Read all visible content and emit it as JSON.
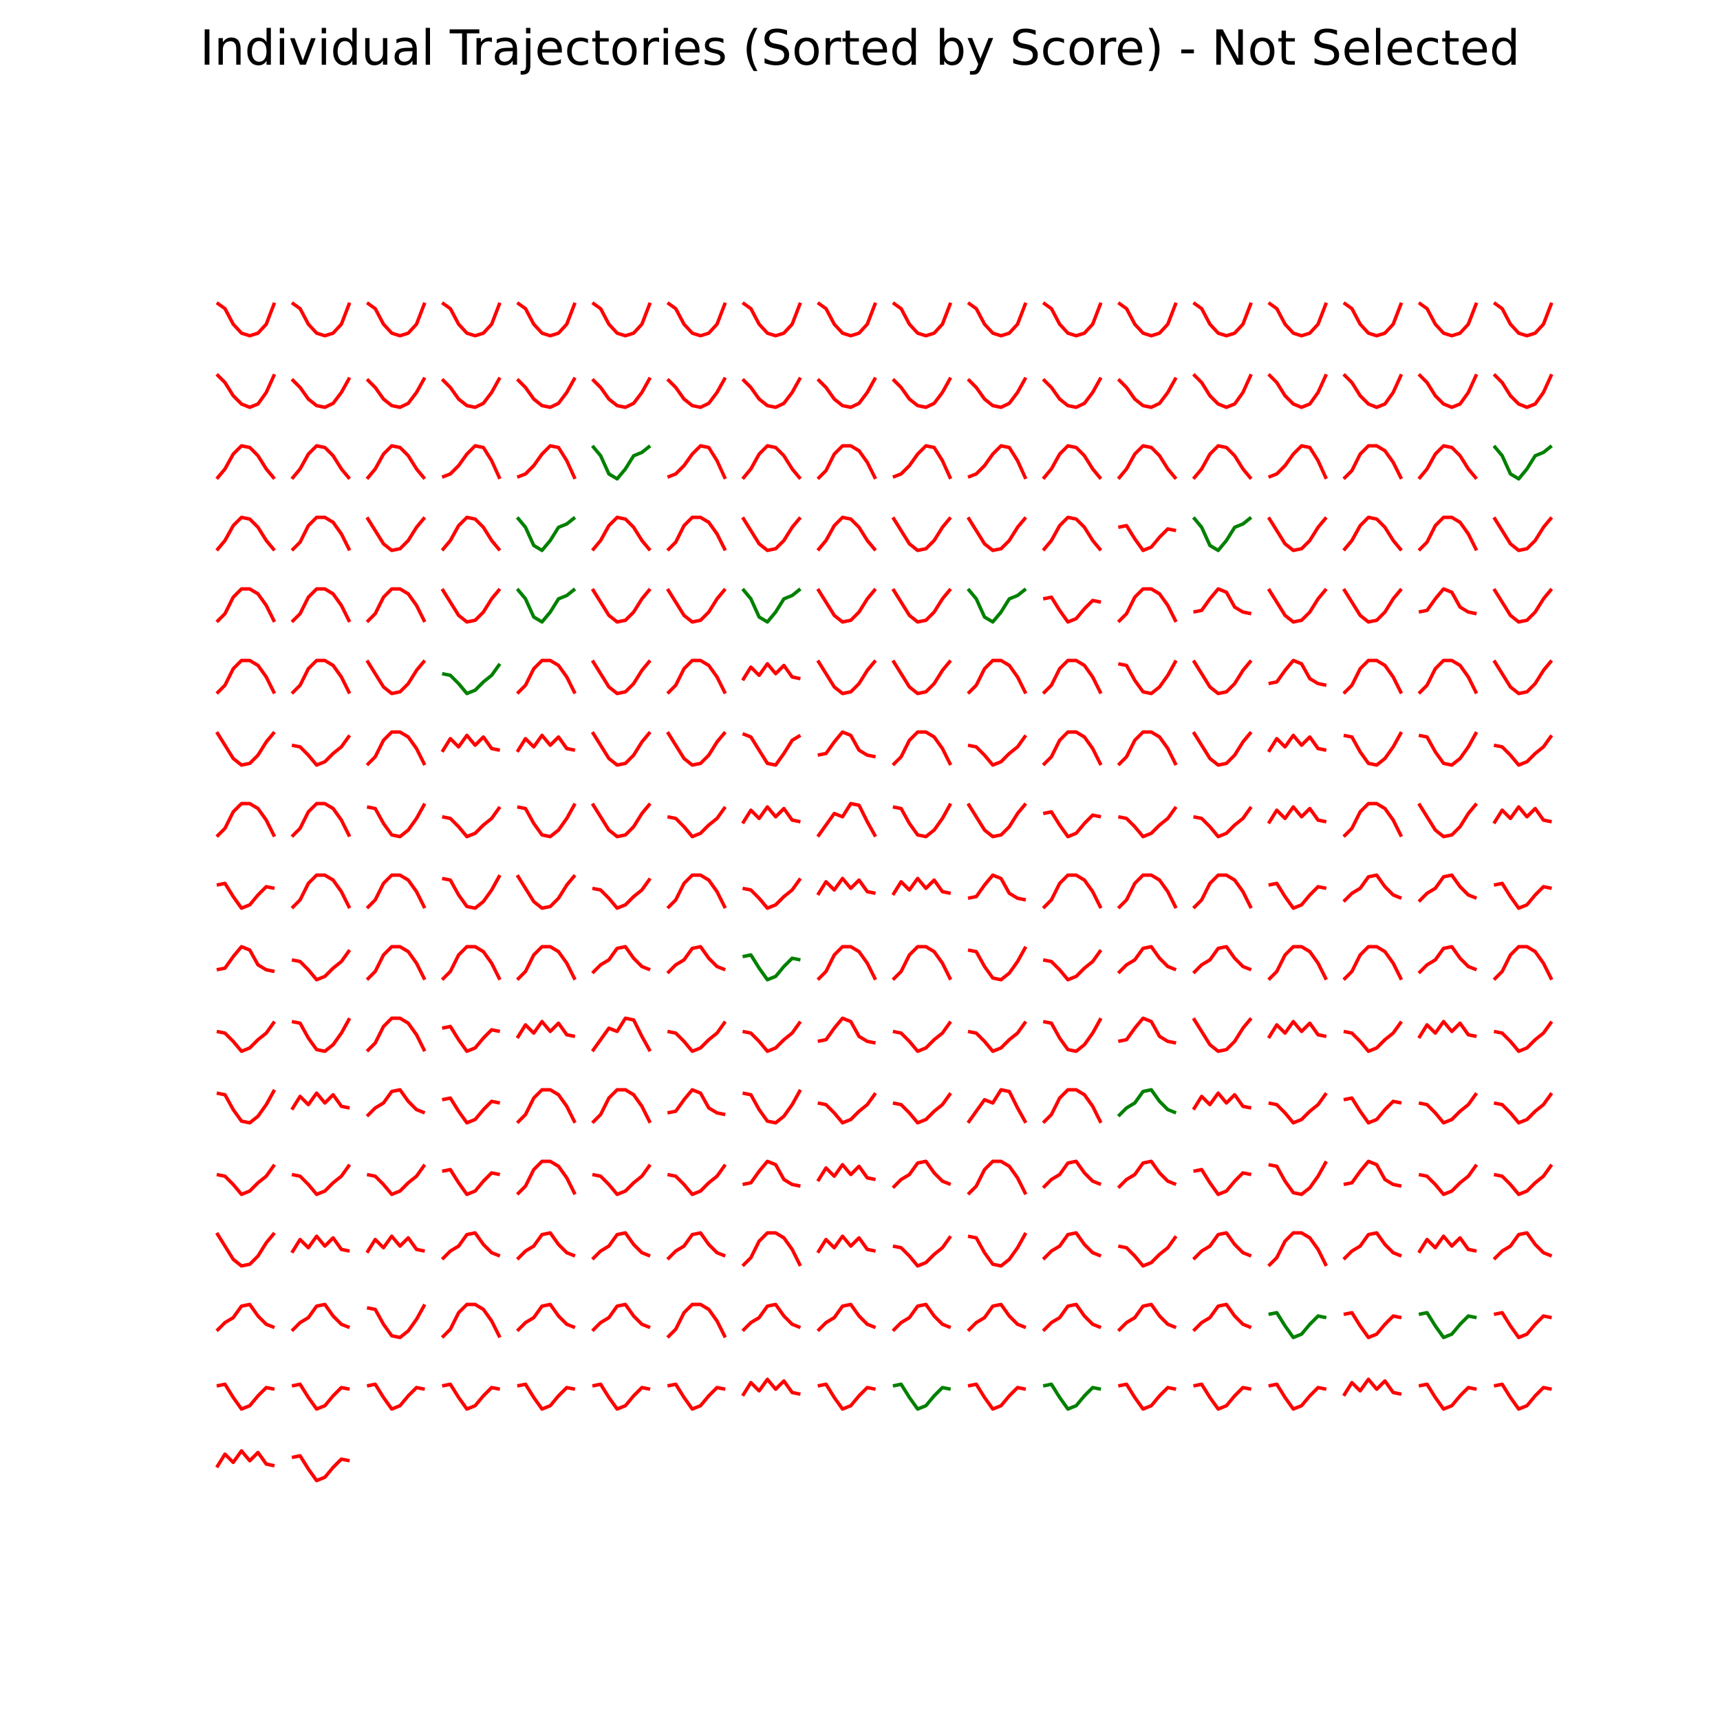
{
  "chart_data": {
    "type": "line",
    "title": "Individual Trajectories (Sorted by Score) - Not Selected",
    "xlabel": "",
    "ylabel": "",
    "grid": false,
    "axes_visible": false,
    "layout": "small multiples, 18 per row, sorted by score",
    "colors": {
      "selected": "#008000",
      "not_selected": "#ff0000"
    },
    "shape_legend_note": "Each trajectory is one of a set of recognizable shapes; values below are normalized 0–1 heights at 8 evenly spaced x steps (1 = top).",
    "shapes": {
      "U": [
        1.0,
        0.82,
        0.35,
        0.08,
        0.0,
        0.08,
        0.35,
        1.0
      ],
      "Ushal": [
        0.85,
        0.6,
        0.25,
        0.05,
        0.0,
        0.12,
        0.45,
        0.9
      ],
      "Vr": [
        1.0,
        0.75,
        0.35,
        0.1,
        0.0,
        0.1,
        0.45,
        1.0
      ],
      "A": [
        0.0,
        0.25,
        0.75,
        1.0,
        1.0,
        0.85,
        0.5,
        0.0
      ],
      "Alft": [
        0.0,
        0.3,
        0.75,
        1.0,
        0.95,
        0.7,
        0.3,
        0.0
      ],
      "Arit": [
        0.05,
        0.15,
        0.4,
        0.75,
        1.0,
        0.95,
        0.55,
        0.0
      ],
      "Awav": [
        0.0,
        0.35,
        0.7,
        0.6,
        1.0,
        0.95,
        0.45,
        0.0
      ],
      "W": [
        1.0,
        0.7,
        0.15,
        0.0,
        0.3,
        0.7,
        0.8,
        1.0
      ],
      "Ul": [
        1.0,
        0.6,
        0.2,
        0.0,
        0.05,
        0.3,
        0.7,
        1.0
      ],
      "S": [
        0.6,
        0.55,
        0.3,
        0.0,
        0.1,
        0.35,
        0.55,
        0.9
      ],
      "Sr": [
        0.95,
        0.85,
        0.45,
        0.05,
        0.0,
        0.35,
        0.75,
        0.9
      ],
      "flatA": [
        0.3,
        0.35,
        0.7,
        1.0,
        0.9,
        0.45,
        0.3,
        0.25
      ],
      "flatU": [
        0.9,
        0.85,
        0.4,
        0.05,
        0.0,
        0.2,
        0.55,
        1.0
      ],
      "lowA": [
        0.2,
        0.45,
        0.6,
        0.95,
        1.0,
        0.65,
        0.4,
        0.3
      ],
      "zig": [
        0.4,
        0.8,
        0.55,
        0.9,
        0.6,
        0.85,
        0.5,
        0.45
      ],
      "dip": [
        0.7,
        0.75,
        0.35,
        0.0,
        0.1,
        0.4,
        0.65,
        0.6
      ],
      "dipR": [
        0.6,
        0.7,
        0.45,
        0.15,
        0.0,
        0.25,
        0.55,
        1.0
      ]
    },
    "trajectories": [
      [
        "U",
        "r"
      ],
      [
        "U",
        "r"
      ],
      [
        "U",
        "r"
      ],
      [
        "U",
        "r"
      ],
      [
        "U",
        "r"
      ],
      [
        "U",
        "r"
      ],
      [
        "U",
        "r"
      ],
      [
        "U",
        "r"
      ],
      [
        "U",
        "r"
      ],
      [
        "U",
        "r"
      ],
      [
        "U",
        "r"
      ],
      [
        "U",
        "r"
      ],
      [
        "U",
        "r"
      ],
      [
        "U",
        "r"
      ],
      [
        "U",
        "r"
      ],
      [
        "U",
        "r"
      ],
      [
        "U",
        "r"
      ],
      [
        "U",
        "r"
      ],
      [
        "Vr",
        "r"
      ],
      [
        "Ushal",
        "r"
      ],
      [
        "Ushal",
        "r"
      ],
      [
        "Ushal",
        "r"
      ],
      [
        "Ushal",
        "r"
      ],
      [
        "Ushal",
        "r"
      ],
      [
        "Ushal",
        "r"
      ],
      [
        "Ushal",
        "r"
      ],
      [
        "Ushal",
        "r"
      ],
      [
        "Ushal",
        "r"
      ],
      [
        "Ushal",
        "r"
      ],
      [
        "Ushal",
        "r"
      ],
      [
        "Ushal",
        "r"
      ],
      [
        "Vr",
        "r"
      ],
      [
        "Vr",
        "r"
      ],
      [
        "Vr",
        "r"
      ],
      [
        "Vr",
        "r"
      ],
      [
        "Vr",
        "r"
      ],
      [
        "Alft",
        "r"
      ],
      [
        "Alft",
        "r"
      ],
      [
        "Alft",
        "r"
      ],
      [
        "Arit",
        "r"
      ],
      [
        "Arit",
        "r"
      ],
      [
        "W",
        "g"
      ],
      [
        "Arit",
        "r"
      ],
      [
        "Alft",
        "r"
      ],
      [
        "A",
        "r"
      ],
      [
        "Arit",
        "r"
      ],
      [
        "Arit",
        "r"
      ],
      [
        "Alft",
        "r"
      ],
      [
        "Alft",
        "r"
      ],
      [
        "Alft",
        "r"
      ],
      [
        "Arit",
        "r"
      ],
      [
        "A",
        "r"
      ],
      [
        "Alft",
        "r"
      ],
      [
        "W",
        "g"
      ],
      [
        "Alft",
        "r"
      ],
      [
        "A",
        "r"
      ],
      [
        "Ul",
        "r"
      ],
      [
        "Alft",
        "r"
      ],
      [
        "W",
        "g"
      ],
      [
        "Alft",
        "r"
      ],
      [
        "A",
        "r"
      ],
      [
        "Ul",
        "r"
      ],
      [
        "Alft",
        "r"
      ],
      [
        "Ul",
        "r"
      ],
      [
        "Ul",
        "r"
      ],
      [
        "Alft",
        "r"
      ],
      [
        "dip",
        "r"
      ],
      [
        "W",
        "g"
      ],
      [
        "Ul",
        "r"
      ],
      [
        "Alft",
        "r"
      ],
      [
        "A",
        "r"
      ],
      [
        "Ul",
        "r"
      ],
      [
        "A",
        "r"
      ],
      [
        "A",
        "r"
      ],
      [
        "A",
        "r"
      ],
      [
        "Ul",
        "r"
      ],
      [
        "W",
        "g"
      ],
      [
        "Ul",
        "r"
      ],
      [
        "Ul",
        "r"
      ],
      [
        "W",
        "g"
      ],
      [
        "Ul",
        "r"
      ],
      [
        "Ul",
        "r"
      ],
      [
        "W",
        "g"
      ],
      [
        "dip",
        "r"
      ],
      [
        "A",
        "r"
      ],
      [
        "flatA",
        "r"
      ],
      [
        "Ul",
        "r"
      ],
      [
        "Ul",
        "r"
      ],
      [
        "flatA",
        "r"
      ],
      [
        "Ul",
        "r"
      ],
      [
        "A",
        "r"
      ],
      [
        "A",
        "r"
      ],
      [
        "Ul",
        "r"
      ],
      [
        "S",
        "g"
      ],
      [
        "A",
        "r"
      ],
      [
        "Ul",
        "r"
      ],
      [
        "A",
        "r"
      ],
      [
        "zig",
        "r"
      ],
      [
        "Ul",
        "r"
      ],
      [
        "Ul",
        "r"
      ],
      [
        "A",
        "r"
      ],
      [
        "A",
        "r"
      ],
      [
        "flatU",
        "r"
      ],
      [
        "Ul",
        "r"
      ],
      [
        "flatA",
        "r"
      ],
      [
        "A",
        "r"
      ],
      [
        "A",
        "r"
      ],
      [
        "Ul",
        "r"
      ],
      [
        "Ul",
        "r"
      ],
      [
        "S",
        "r"
      ],
      [
        "A",
        "r"
      ],
      [
        "zig",
        "r"
      ],
      [
        "zig",
        "r"
      ],
      [
        "Ul",
        "r"
      ],
      [
        "Ul",
        "r"
      ],
      [
        "Sr",
        "r"
      ],
      [
        "flatA",
        "r"
      ],
      [
        "A",
        "r"
      ],
      [
        "S",
        "r"
      ],
      [
        "A",
        "r"
      ],
      [
        "A",
        "r"
      ],
      [
        "Ul",
        "r"
      ],
      [
        "zig",
        "r"
      ],
      [
        "flatU",
        "r"
      ],
      [
        "flatU",
        "r"
      ],
      [
        "S",
        "r"
      ],
      [
        "A",
        "r"
      ],
      [
        "A",
        "r"
      ],
      [
        "flatU",
        "r"
      ],
      [
        "S",
        "r"
      ],
      [
        "flatU",
        "r"
      ],
      [
        "Ul",
        "r"
      ],
      [
        "S",
        "r"
      ],
      [
        "zig",
        "r"
      ],
      [
        "Awav",
        "r"
      ],
      [
        "flatU",
        "r"
      ],
      [
        "Ul",
        "r"
      ],
      [
        "dip",
        "r"
      ],
      [
        "S",
        "r"
      ],
      [
        "S",
        "r"
      ],
      [
        "zig",
        "r"
      ],
      [
        "A",
        "r"
      ],
      [
        "Ul",
        "r"
      ],
      [
        "zig",
        "r"
      ],
      [
        "dip",
        "r"
      ],
      [
        "A",
        "r"
      ],
      [
        "A",
        "r"
      ],
      [
        "flatU",
        "r"
      ],
      [
        "Ul",
        "r"
      ],
      [
        "S",
        "r"
      ],
      [
        "A",
        "r"
      ],
      [
        "S",
        "r"
      ],
      [
        "zig",
        "r"
      ],
      [
        "zig",
        "r"
      ],
      [
        "flatA",
        "r"
      ],
      [
        "A",
        "r"
      ],
      [
        "A",
        "r"
      ],
      [
        "A",
        "r"
      ],
      [
        "dip",
        "r"
      ],
      [
        "lowA",
        "r"
      ],
      [
        "lowA",
        "r"
      ],
      [
        "dip",
        "r"
      ],
      [
        "flatA",
        "r"
      ],
      [
        "S",
        "r"
      ],
      [
        "A",
        "r"
      ],
      [
        "A",
        "r"
      ],
      [
        "A",
        "r"
      ],
      [
        "lowA",
        "r"
      ],
      [
        "lowA",
        "r"
      ],
      [
        "dip",
        "g"
      ],
      [
        "A",
        "r"
      ],
      [
        "A",
        "r"
      ],
      [
        "flatU",
        "r"
      ],
      [
        "S",
        "r"
      ],
      [
        "lowA",
        "r"
      ],
      [
        "lowA",
        "r"
      ],
      [
        "A",
        "r"
      ],
      [
        "A",
        "r"
      ],
      [
        "lowA",
        "r"
      ],
      [
        "A",
        "r"
      ],
      [
        "S",
        "r"
      ],
      [
        "flatU",
        "r"
      ],
      [
        "A",
        "r"
      ],
      [
        "dip",
        "r"
      ],
      [
        "zig",
        "r"
      ],
      [
        "Awav",
        "r"
      ],
      [
        "S",
        "r"
      ],
      [
        "S",
        "r"
      ],
      [
        "flatA",
        "r"
      ],
      [
        "S",
        "r"
      ],
      [
        "S",
        "r"
      ],
      [
        "flatU",
        "r"
      ],
      [
        "flatA",
        "r"
      ],
      [
        "Ul",
        "r"
      ],
      [
        "zig",
        "r"
      ],
      [
        "S",
        "r"
      ],
      [
        "zig",
        "r"
      ],
      [
        "S",
        "r"
      ],
      [
        "flatU",
        "r"
      ],
      [
        "zig",
        "r"
      ],
      [
        "lowA",
        "r"
      ],
      [
        "dip",
        "r"
      ],
      [
        "A",
        "r"
      ],
      [
        "A",
        "r"
      ],
      [
        "flatA",
        "r"
      ],
      [
        "flatU",
        "r"
      ],
      [
        "S",
        "r"
      ],
      [
        "S",
        "r"
      ],
      [
        "Awav",
        "r"
      ],
      [
        "A",
        "r"
      ],
      [
        "lowA",
        "g"
      ],
      [
        "zig",
        "r"
      ],
      [
        "S",
        "r"
      ],
      [
        "dip",
        "r"
      ],
      [
        "S",
        "r"
      ],
      [
        "S",
        "r"
      ],
      [
        "S",
        "r"
      ],
      [
        "S",
        "r"
      ],
      [
        "S",
        "r"
      ],
      [
        "dip",
        "r"
      ],
      [
        "A",
        "r"
      ],
      [
        "S",
        "r"
      ],
      [
        "S",
        "r"
      ],
      [
        "flatA",
        "r"
      ],
      [
        "zig",
        "r"
      ],
      [
        "lowA",
        "r"
      ],
      [
        "A",
        "r"
      ],
      [
        "lowA",
        "r"
      ],
      [
        "lowA",
        "r"
      ],
      [
        "dip",
        "r"
      ],
      [
        "flatU",
        "r"
      ],
      [
        "flatA",
        "r"
      ],
      [
        "S",
        "r"
      ],
      [
        "S",
        "r"
      ],
      [
        "Ul",
        "r"
      ],
      [
        "zig",
        "r"
      ],
      [
        "zig",
        "r"
      ],
      [
        "lowA",
        "r"
      ],
      [
        "lowA",
        "r"
      ],
      [
        "lowA",
        "r"
      ],
      [
        "lowA",
        "r"
      ],
      [
        "A",
        "r"
      ],
      [
        "zig",
        "r"
      ],
      [
        "S",
        "r"
      ],
      [
        "flatU",
        "r"
      ],
      [
        "lowA",
        "r"
      ],
      [
        "S",
        "r"
      ],
      [
        "lowA",
        "r"
      ],
      [
        "A",
        "r"
      ],
      [
        "lowA",
        "r"
      ],
      [
        "zig",
        "r"
      ],
      [
        "lowA",
        "r"
      ],
      [
        "lowA",
        "r"
      ],
      [
        "lowA",
        "r"
      ],
      [
        "flatU",
        "r"
      ],
      [
        "A",
        "r"
      ],
      [
        "lowA",
        "r"
      ],
      [
        "lowA",
        "r"
      ],
      [
        "A",
        "r"
      ],
      [
        "lowA",
        "r"
      ],
      [
        "lowA",
        "r"
      ],
      [
        "lowA",
        "r"
      ],
      [
        "lowA",
        "r"
      ],
      [
        "lowA",
        "r"
      ],
      [
        "lowA",
        "r"
      ],
      [
        "lowA",
        "r"
      ],
      [
        "dip",
        "g"
      ],
      [
        "dip",
        "r"
      ],
      [
        "dip",
        "g"
      ],
      [
        "dip",
        "r"
      ],
      [
        "dip",
        "r"
      ],
      [
        "dip",
        "r"
      ],
      [
        "dip",
        "r"
      ],
      [
        "dip",
        "r"
      ],
      [
        "dip",
        "r"
      ],
      [
        "dip",
        "r"
      ],
      [
        "dip",
        "r"
      ],
      [
        "zig",
        "r"
      ],
      [
        "dip",
        "r"
      ],
      [
        "dip",
        "g"
      ],
      [
        "dip",
        "r"
      ],
      [
        "dip",
        "g"
      ],
      [
        "dip",
        "r"
      ],
      [
        "dip",
        "r"
      ],
      [
        "dip",
        "r"
      ],
      [
        "zig",
        "r"
      ],
      [
        "dip",
        "r"
      ],
      [
        "dip",
        "r"
      ],
      [
        "zig",
        "r"
      ],
      [
        "dip",
        "r"
      ]
    ]
  }
}
